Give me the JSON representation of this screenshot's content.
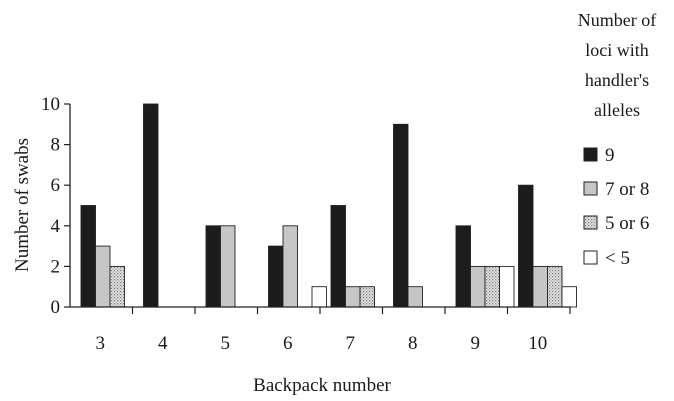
{
  "chart_data": {
    "type": "bar",
    "title": "",
    "xlabel": "Backpack number",
    "ylabel": "Number of swabs",
    "ylim": [
      0,
      10
    ],
    "yticks": [
      "0",
      "2",
      "4",
      "6",
      "8",
      "10"
    ],
    "categories": [
      "3",
      "4",
      "5",
      "6",
      "7",
      "8",
      "9",
      "10"
    ],
    "legend_title": [
      "Number of",
      "loci with",
      "handler's",
      "alleles"
    ],
    "legend_position": "right",
    "grid": false,
    "series": [
      {
        "name": "9",
        "color": "#1c1c1c",
        "pattern": "solid",
        "values": [
          5,
          10,
          4,
          3,
          5,
          9,
          4,
          6
        ]
      },
      {
        "name": "7 or 8",
        "color": "#c6c6c6",
        "pattern": "solid",
        "values": [
          3,
          0,
          4,
          4,
          1,
          1,
          2,
          2
        ]
      },
      {
        "name": "5 or 6",
        "color": "#d8d8d8",
        "pattern": "dotted",
        "values": [
          2,
          0,
          0,
          0,
          1,
          0,
          2,
          2
        ]
      },
      {
        "name": "< 5",
        "color": "#ffffff",
        "pattern": "solid",
        "values": [
          0,
          0,
          0,
          1,
          0,
          0,
          2,
          1
        ]
      }
    ]
  }
}
